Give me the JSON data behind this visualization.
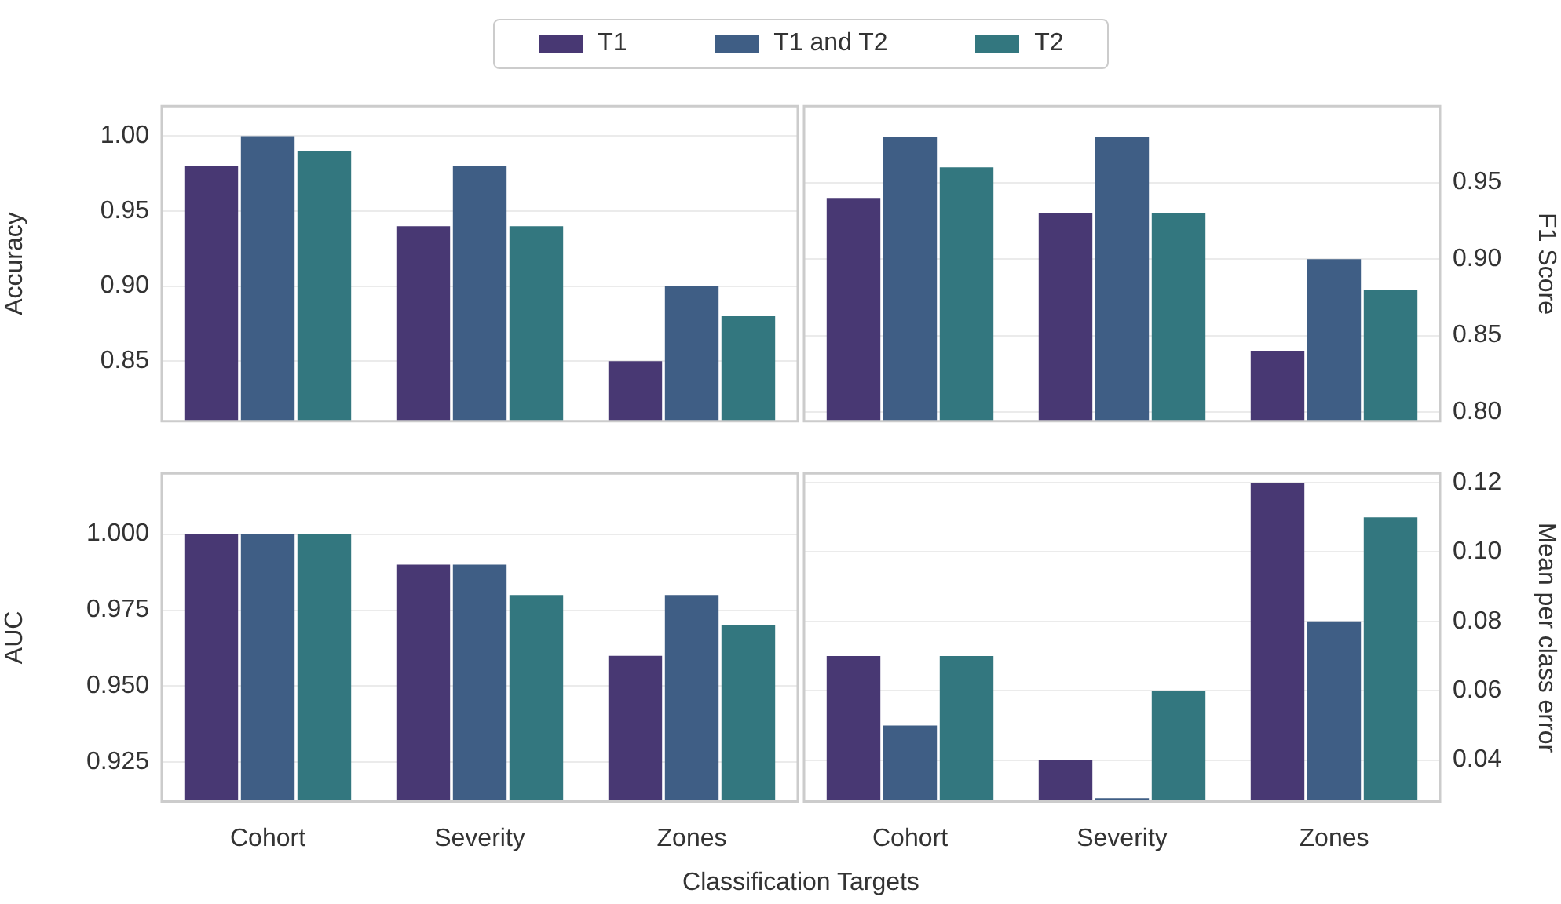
{
  "chart_data": [
    {
      "type": "bar",
      "categories": [
        null,
        null,
        null
      ],
      "ylabel": "Accuracy",
      "ylim": [
        0.81,
        1.02
      ],
      "yticks": [
        {
          "value": 0.85,
          "label": "0.85"
        },
        {
          "value": 0.9,
          "label": "0.90"
        },
        {
          "value": 0.95,
          "label": "0.95"
        },
        {
          "value": 1.0,
          "label": "1.00"
        }
      ],
      "grid": "y",
      "tick_labels": "y",
      "legend": "top",
      "series": [
        {
          "name": "T1",
          "color": "#483873",
          "values": [
            0.98,
            0.94,
            0.85
          ]
        },
        {
          "name": "T1 and T2",
          "color": "#3f5e85",
          "values": [
            1.0,
            0.98,
            0.9
          ]
        },
        {
          "name": "T2",
          "color": "#33777f",
          "values": [
            0.99,
            0.94,
            0.88
          ]
        }
      ]
    },
    {
      "type": "bar",
      "categories": [
        null,
        null,
        null
      ],
      "ylabel": "F1 Score",
      "ylim": [
        0.794,
        1.0
      ],
      "yticks": [
        {
          "value": 0.8,
          "label": "0.80"
        },
        {
          "value": 0.85,
          "label": "0.85"
        },
        {
          "value": 0.9,
          "label": "0.90"
        },
        {
          "value": 0.95,
          "label": "0.95"
        }
      ],
      "grid": "y",
      "tick_labels": "y",
      "series": [
        {
          "color": "#483873",
          "values": [
            0.94,
            0.93,
            0.84
          ]
        },
        {
          "color": "#3f5e85",
          "values": [
            0.98,
            0.98,
            0.9
          ]
        },
        {
          "color": "#33777f",
          "values": [
            0.96,
            0.93,
            0.88
          ]
        }
      ]
    },
    {
      "type": "bar",
      "categories": [
        "Cohort",
        "Severity",
        "Zones"
      ],
      "ylabel": "AUC",
      "xlabel": "Classification Targets",
      "ylim": [
        0.912,
        1.02
      ],
      "yticks": [
        {
          "value": 0.925,
          "label": "0.925"
        },
        {
          "value": 0.95,
          "label": "0.950"
        },
        {
          "value": 0.975,
          "label": "0.975"
        },
        {
          "value": 1.0,
          "label": "1.000"
        }
      ],
      "grid": "y",
      "series": [
        {
          "color": "#483873",
          "values": [
            1.0,
            0.99,
            0.96
          ]
        },
        {
          "color": "#3f5e85",
          "values": [
            1.0,
            0.99,
            0.98
          ]
        },
        {
          "color": "#33777f",
          "values": [
            1.0,
            0.98,
            0.97
          ]
        }
      ]
    },
    {
      "type": "bar",
      "categories": [
        "Cohort",
        "Severity",
        "Zones"
      ],
      "ylabel": "Mean per class error",
      "ylim": [
        0.028,
        0.1227
      ],
      "yticks": [
        {
          "value": 0.04,
          "label": "0.04"
        },
        {
          "value": 0.06,
          "label": "0.06"
        },
        {
          "value": 0.08,
          "label": "0.08"
        },
        {
          "value": 0.1,
          "label": "0.10"
        },
        {
          "value": 0.12,
          "label": "0.12"
        }
      ],
      "grid": "y",
      "series": [
        {
          "color": "#483873",
          "values": [
            0.07,
            0.04,
            0.12
          ]
        },
        {
          "color": "#3f5e85",
          "values": [
            0.05,
            0.029,
            0.08
          ]
        },
        {
          "color": "#33777f",
          "values": [
            0.07,
            0.06,
            0.11
          ]
        }
      ]
    }
  ]
}
